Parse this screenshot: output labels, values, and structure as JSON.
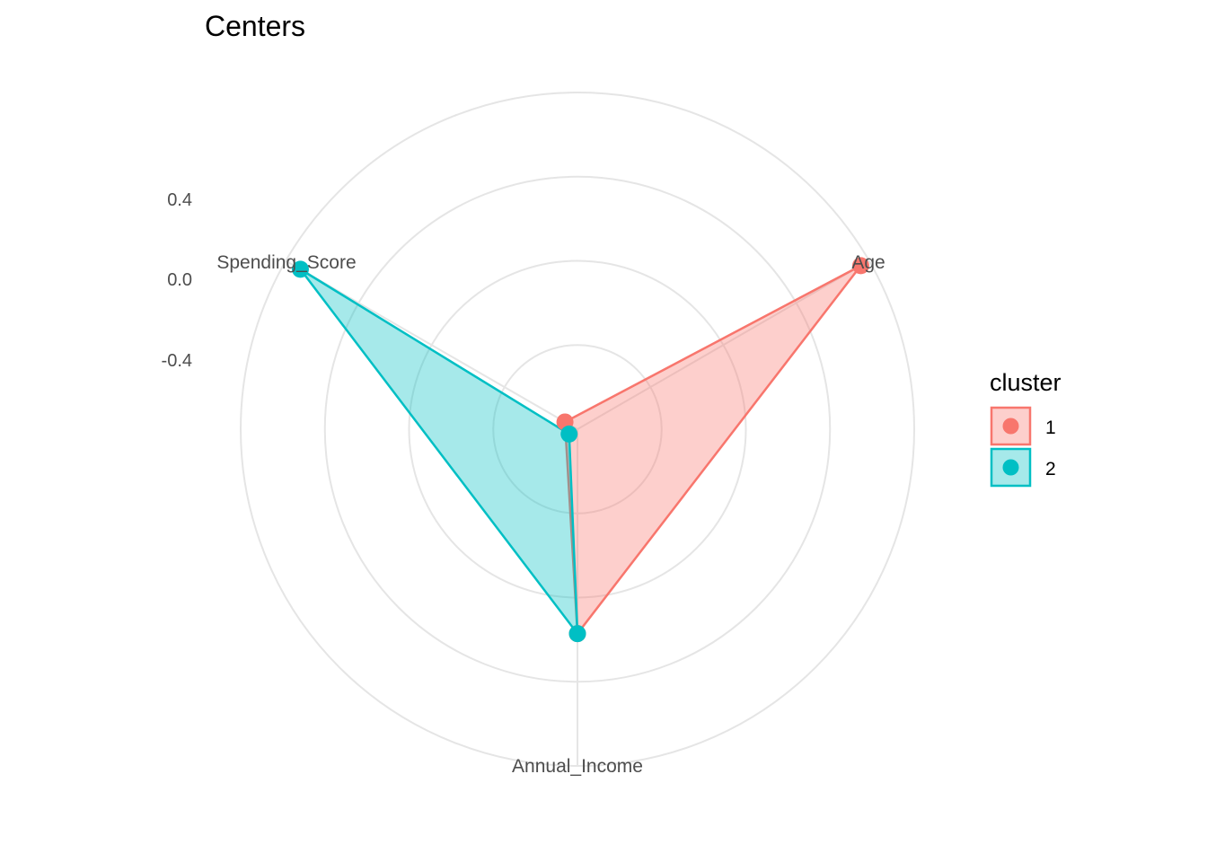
{
  "chart_data": {
    "type": "radar",
    "title": "Centers",
    "axes": [
      "Age",
      "Annual_Income",
      "Spending_Score"
    ],
    "radial_ticks": [
      "0.4",
      "0.0",
      "-0.4"
    ],
    "grid_levels": 4,
    "legend": {
      "title": "cluster",
      "position": "right"
    },
    "series": [
      {
        "name": "1",
        "color": "#F8766D",
        "values": [
          0.48,
          -0.03,
          -0.82
        ]
      },
      {
        "name": "2",
        "color": "#00BFC4",
        "values": [
          -0.92,
          -0.03,
          0.45
        ]
      }
    ],
    "r_range": [
      -0.88,
      0.52
    ],
    "grid": true
  }
}
